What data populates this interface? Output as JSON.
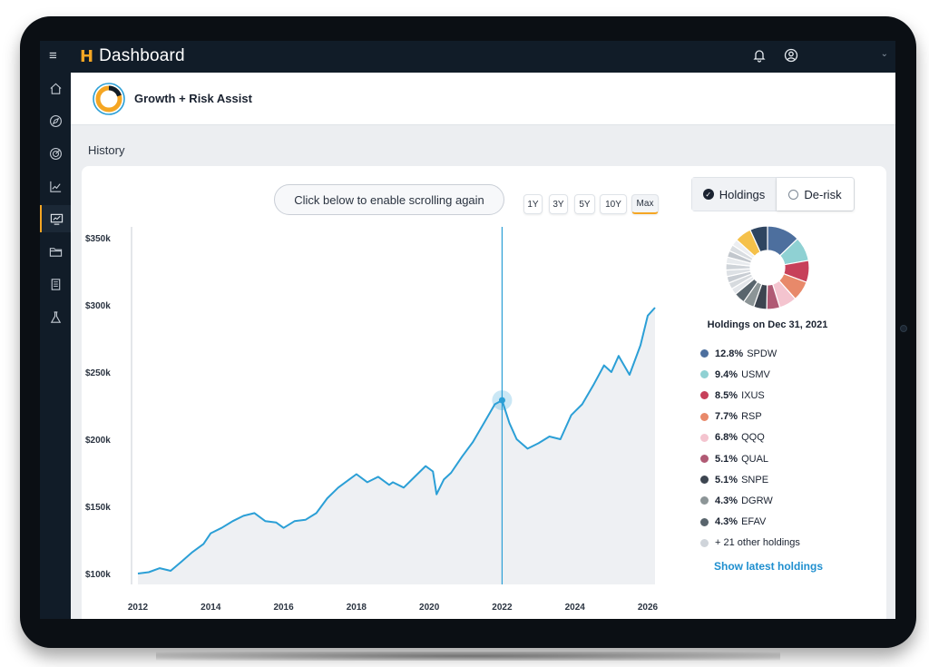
{
  "app": {
    "title": "Dashboard",
    "brand_mark": "H",
    "menu_icon": "menu-icon",
    "bell_icon": "bell-icon",
    "user_icon": "user-icon"
  },
  "sidebar": {
    "items": [
      {
        "icon": "home-icon",
        "active": false
      },
      {
        "icon": "compass-icon",
        "active": false
      },
      {
        "icon": "target-icon",
        "active": false
      },
      {
        "icon": "line-chart-icon",
        "active": false
      },
      {
        "icon": "monitor-chart-icon",
        "active": true
      },
      {
        "icon": "folder-icon",
        "active": false
      },
      {
        "icon": "document-icon",
        "active": false
      },
      {
        "icon": "flask-icon",
        "active": false
      }
    ]
  },
  "product": {
    "title": "Growth + Risk Assist"
  },
  "section": {
    "title": "History"
  },
  "controls": {
    "scroll_button": "Click below to enable scrolling again",
    "ranges": [
      "1Y",
      "3Y",
      "5Y",
      "10Y",
      "Max"
    ],
    "active_range": "Max",
    "toggle_holdings": "Holdings",
    "toggle_derisk": "De-risk"
  },
  "holdings": {
    "title": "Holdings on Dec 31, 2021",
    "items": [
      {
        "pct": "12.8%",
        "ticker": "SPDW",
        "color": "#4d6f9e"
      },
      {
        "pct": "9.4%",
        "ticker": "USMV",
        "color": "#8fd1d3"
      },
      {
        "pct": "8.5%",
        "ticker": "IXUS",
        "color": "#c7405a"
      },
      {
        "pct": "7.7%",
        "ticker": "RSP",
        "color": "#e8896a"
      },
      {
        "pct": "6.8%",
        "ticker": "QQQ",
        "color": "#f4c4cf"
      },
      {
        "pct": "5.1%",
        "ticker": "QUAL",
        "color": "#b05a74"
      },
      {
        "pct": "5.1%",
        "ticker": "SNPE",
        "color": "#3d4550"
      },
      {
        "pct": "4.3%",
        "ticker": "DGRW",
        "color": "#8c9597"
      },
      {
        "pct": "4.3%",
        "ticker": "EFAV",
        "color": "#59656d"
      }
    ],
    "other": {
      "label": "+ 21 other holdings",
      "color": "#cfd4da"
    },
    "show_latest": "Show latest holdings"
  },
  "chart_data": {
    "type": "line",
    "y_ticks": [
      "$350k",
      "$300k",
      "$250k",
      "$200k",
      "$150k",
      "$100k"
    ],
    "x_ticks": [
      "2012",
      "2014",
      "2016",
      "2018",
      "2020",
      "2022",
      "2024",
      "2026"
    ],
    "ylim": [
      100000,
      350000
    ],
    "xlim": [
      2012,
      2026
    ],
    "marker": {
      "x": 2022.0,
      "y": 229000
    },
    "series": [
      {
        "color": "#2b9fd6",
        "x": [
          2012.0,
          2012.3,
          2012.6,
          2012.9,
          2013.2,
          2013.5,
          2013.8,
          2014.0,
          2014.3,
          2014.6,
          2014.9,
          2015.2,
          2015.5,
          2015.8,
          2016.0,
          2016.3,
          2016.6,
          2016.9,
          2017.2,
          2017.5,
          2017.8,
          2018.0,
          2018.3,
          2018.6,
          2018.9,
          2019.0,
          2019.3,
          2019.6,
          2019.9,
          2020.1,
          2020.2,
          2020.4,
          2020.6,
          2020.9,
          2021.2,
          2021.5,
          2021.8,
          2022.0,
          2022.2,
          2022.4,
          2022.7,
          2023.0,
          2023.3,
          2023.6,
          2023.9,
          2024.2,
          2024.5,
          2024.8,
          2025.0,
          2025.2,
          2025.5,
          2025.8,
          2026.0,
          2026.2
        ],
        "y": [
          100000,
          101000,
          104000,
          102000,
          109000,
          116000,
          122000,
          130000,
          134000,
          139000,
          143000,
          145000,
          139000,
          138000,
          134000,
          139000,
          140000,
          145000,
          156000,
          164000,
          170000,
          174000,
          168000,
          172000,
          166000,
          168000,
          164000,
          172000,
          180000,
          176000,
          159000,
          170000,
          175000,
          187000,
          198000,
          212000,
          226000,
          229000,
          212000,
          200000,
          193000,
          197000,
          202000,
          200000,
          218000,
          226000,
          240000,
          255000,
          250000,
          262000,
          248000,
          270000,
          292000,
          298000
        ]
      }
    ]
  }
}
